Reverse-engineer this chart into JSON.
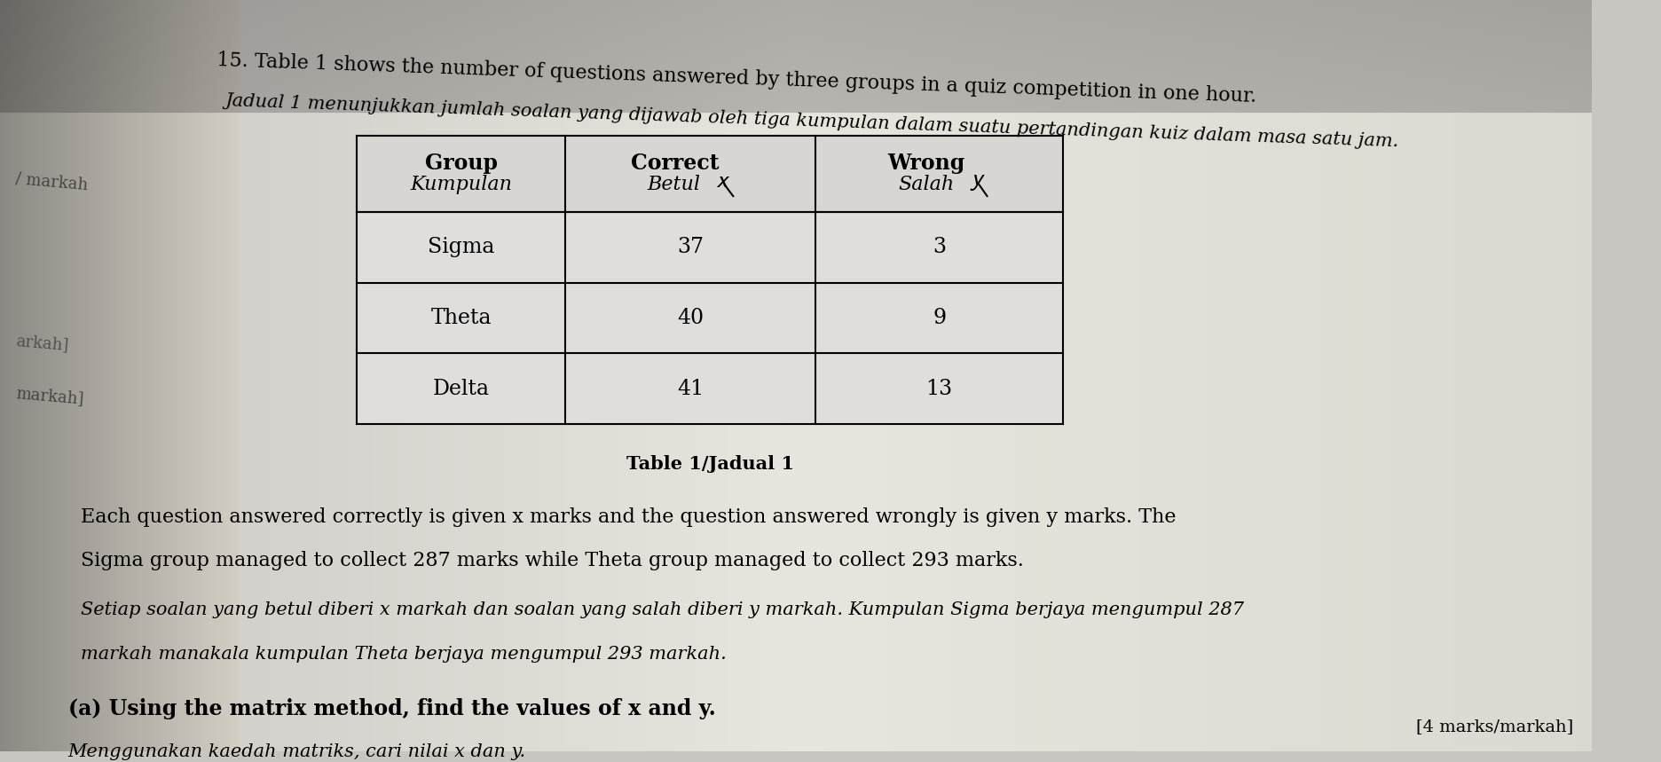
{
  "bg_color_center": "#e8e6e0",
  "bg_color_left": "#a0a09a",
  "bg_color_right": "#d0cec8",
  "bg_color_top": "#b8b6b0",
  "title_line1": "15. Table 1 shows the number of questions answered by three groups in a quiz competition in one hour.",
  "title_line2": "Jadual 1 menunjukkan jumlah soalan yang dijawab oleh tiga kumpulan dalam suatu pertandingan kuiz dalam masa satu jam.",
  "left_text1": "/ markah",
  "left_text2": "markah]",
  "left_text3": "arkah]",
  "table_caption": "Table 1/Jadual 1",
  "col_header0": "Group\nKumpulan",
  "col_header1": "Correct\nBetul",
  "col_header2": "Wrong\nSalah",
  "rows": [
    [
      "Sigma",
      "37",
      "3"
    ],
    [
      "Theta",
      "40",
      "9"
    ],
    [
      "Delta",
      "41",
      "13"
    ]
  ],
  "para1_line1": "Each question answered correctly is given x marks and the question answered wrongly is given y marks. The",
  "para1_line2": "Sigma group managed to collect 287 marks while Theta group managed to collect 293 marks.",
  "para2_line1": "Setiap soalan yang betul diberi x markah dan soalan yang salah diberi y markah. Kumpulan Sigma berjaya mengumpul 287",
  "para2_line2": "markah manakala kumpulan Theta berjaya mengumpul 293 markah.",
  "para3": "(a) Using the matrix method, find the values of x and y.",
  "para4": "Menggunakan kaedah matriks, cari nilai x dan y.",
  "bottom_right": "[4 marks/markah]"
}
